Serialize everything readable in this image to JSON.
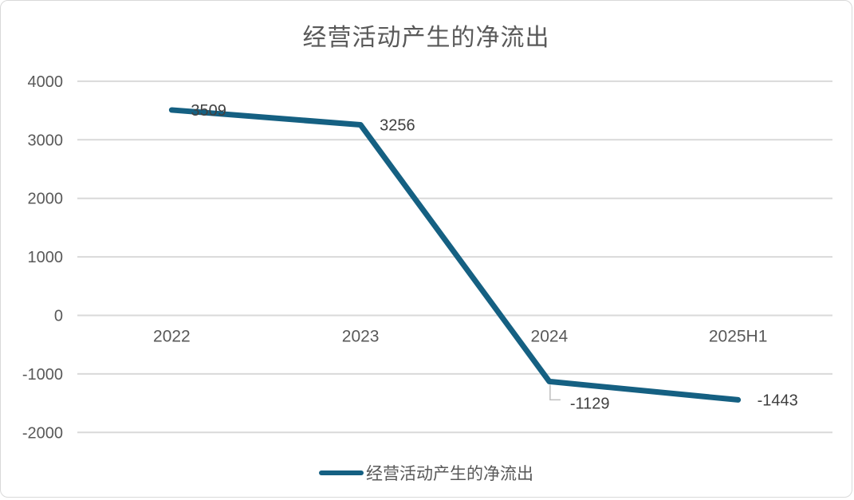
{
  "accent_color": "#156082",
  "grid_color": "#d9d9d9",
  "axis_label_color": "#595959",
  "data_label_color": "#404040",
  "leader_line_color": "#bfbfbf",
  "chart_data": {
    "type": "line",
    "title": "经营活动产生的净流出",
    "categories": [
      "2022",
      "2023",
      "2024",
      "2025H1"
    ],
    "series": [
      {
        "name": "经营活动产生的净流出",
        "values": [
          3509,
          3256,
          -1129,
          -1443
        ],
        "color": "#156082"
      }
    ],
    "data_labels": [
      "3509",
      "3256",
      "-1129",
      "-1443"
    ],
    "yticks": [
      4000,
      3000,
      2000,
      1000,
      0,
      -1000,
      -2000
    ],
    "ylim": [
      -2000,
      4000
    ],
    "xlabel": "",
    "ylabel": "",
    "grid": true,
    "gridlines": "horizontal",
    "legend_position": "bottom",
    "callout_index": 2
  }
}
